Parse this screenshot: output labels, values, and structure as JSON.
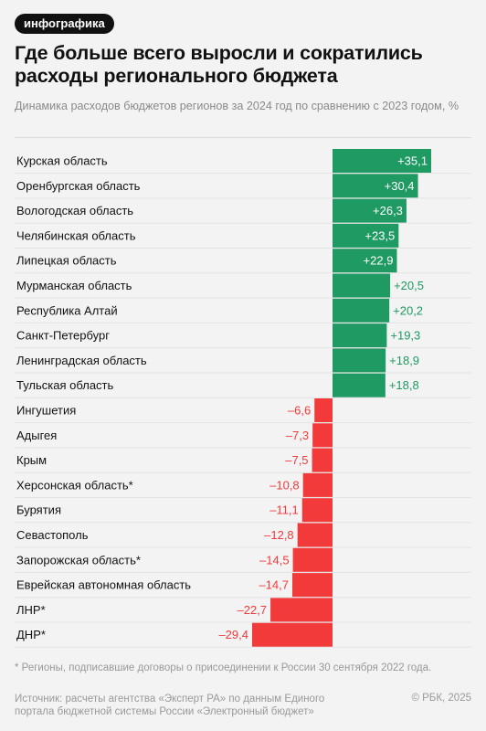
{
  "header": {
    "badge": "инфографика",
    "title": "Где больше всего выросли и сократились расходы регионального бюджета",
    "subtitle": "Динамика расходов бюджетов регионов за 2024 год по сравнению с 2023 годом, %"
  },
  "colors": {
    "positive": "#1f9a63",
    "negative": "#f23a3a",
    "positive_label": "#1f9a63",
    "negative_label": "#f23a3a"
  },
  "chart_data": {
    "type": "bar",
    "orientation": "horizontal",
    "categories": [
      "Курская область",
      "Оренбургская область",
      "Вологодская область",
      "Челябинская область",
      "Липецкая область",
      "Мурманская область",
      "Республика Алтай",
      "Санкт-Петербург",
      "Ленинградская область",
      "Тульская область",
      "Ингушетия",
      "Адыгея",
      "Крым",
      "Херсонская область*",
      "Бурятия",
      "Севастополь",
      "Запорожская область*",
      "Еврейская автономная область",
      "ЛНР*",
      "ДНР*"
    ],
    "values": [
      35.1,
      30.4,
      26.3,
      23.5,
      22.9,
      20.5,
      20.2,
      19.3,
      18.9,
      18.8,
      -6.6,
      -7.3,
      -7.5,
      -10.8,
      -11.1,
      -12.8,
      -14.5,
      -14.7,
      -22.7,
      -29.4
    ],
    "value_labels": [
      "+35,1",
      "+30,4",
      "+26,3",
      "+23,5",
      "+22,9",
      "+20,5",
      "+20,2",
      "+19,3",
      "+18,9",
      "+18,8",
      "–6,6",
      "–7,3",
      "–7,5",
      "–10,8",
      "–11,1",
      "–12,8",
      "–14,5",
      "–14,7",
      "–22,7",
      "–29,4"
    ],
    "xlim": [
      -29.4,
      35.1
    ],
    "grid": false,
    "legend": "none"
  },
  "footer": {
    "footnote": "* Регионы, подписавшие договоры о присоединении к России 30 сентября 2022 года.",
    "source": "Источник: расчеты агентства «Эксперт РА» по данным Единого портала бюджетной системы России «Электронный бюджет»",
    "copyright": "© РБК, 2025"
  }
}
